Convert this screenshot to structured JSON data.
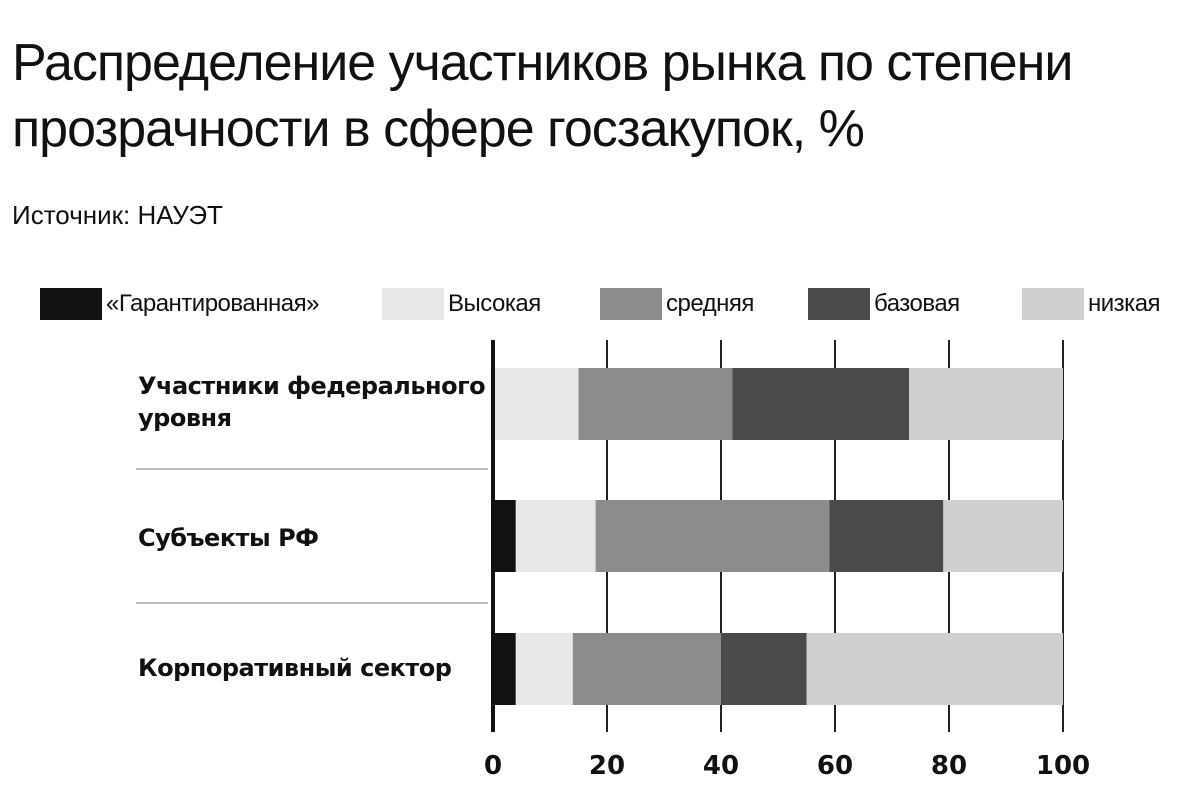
{
  "chart_data": {
    "type": "bar",
    "orientation": "horizontal",
    "stacked": true,
    "title": "Распределение участников рынка по степени прозрачности в сфере госзакупок, %",
    "subtitle": "Источник: НАУЭТ",
    "xlabel": "",
    "ylabel": "",
    "xlim": [
      0,
      100
    ],
    "x_ticks": [
      "0",
      "20",
      "40",
      "60",
      "80",
      "100"
    ],
    "grid": "vertical",
    "legend_position": "top",
    "categories": [
      "Участники федерального уровня",
      "Субъекты РФ",
      "Корпоративный сектор"
    ],
    "series": [
      {
        "name": "«Гарантированная»",
        "color": "#111111",
        "values": [
          0,
          4,
          4
        ]
      },
      {
        "name": "Высокая",
        "color": "#e8e8e8",
        "values": [
          15,
          14,
          10
        ]
      },
      {
        "name": "средняя",
        "color": "#8c8c8c",
        "values": [
          27,
          41,
          26
        ]
      },
      {
        "name": "базовая",
        "color": "#4a4a4a",
        "values": [
          31,
          20,
          15
        ]
      },
      {
        "name": "низкая",
        "color": "#cfcfcf",
        "values": [
          27,
          21,
          45
        ]
      }
    ]
  }
}
